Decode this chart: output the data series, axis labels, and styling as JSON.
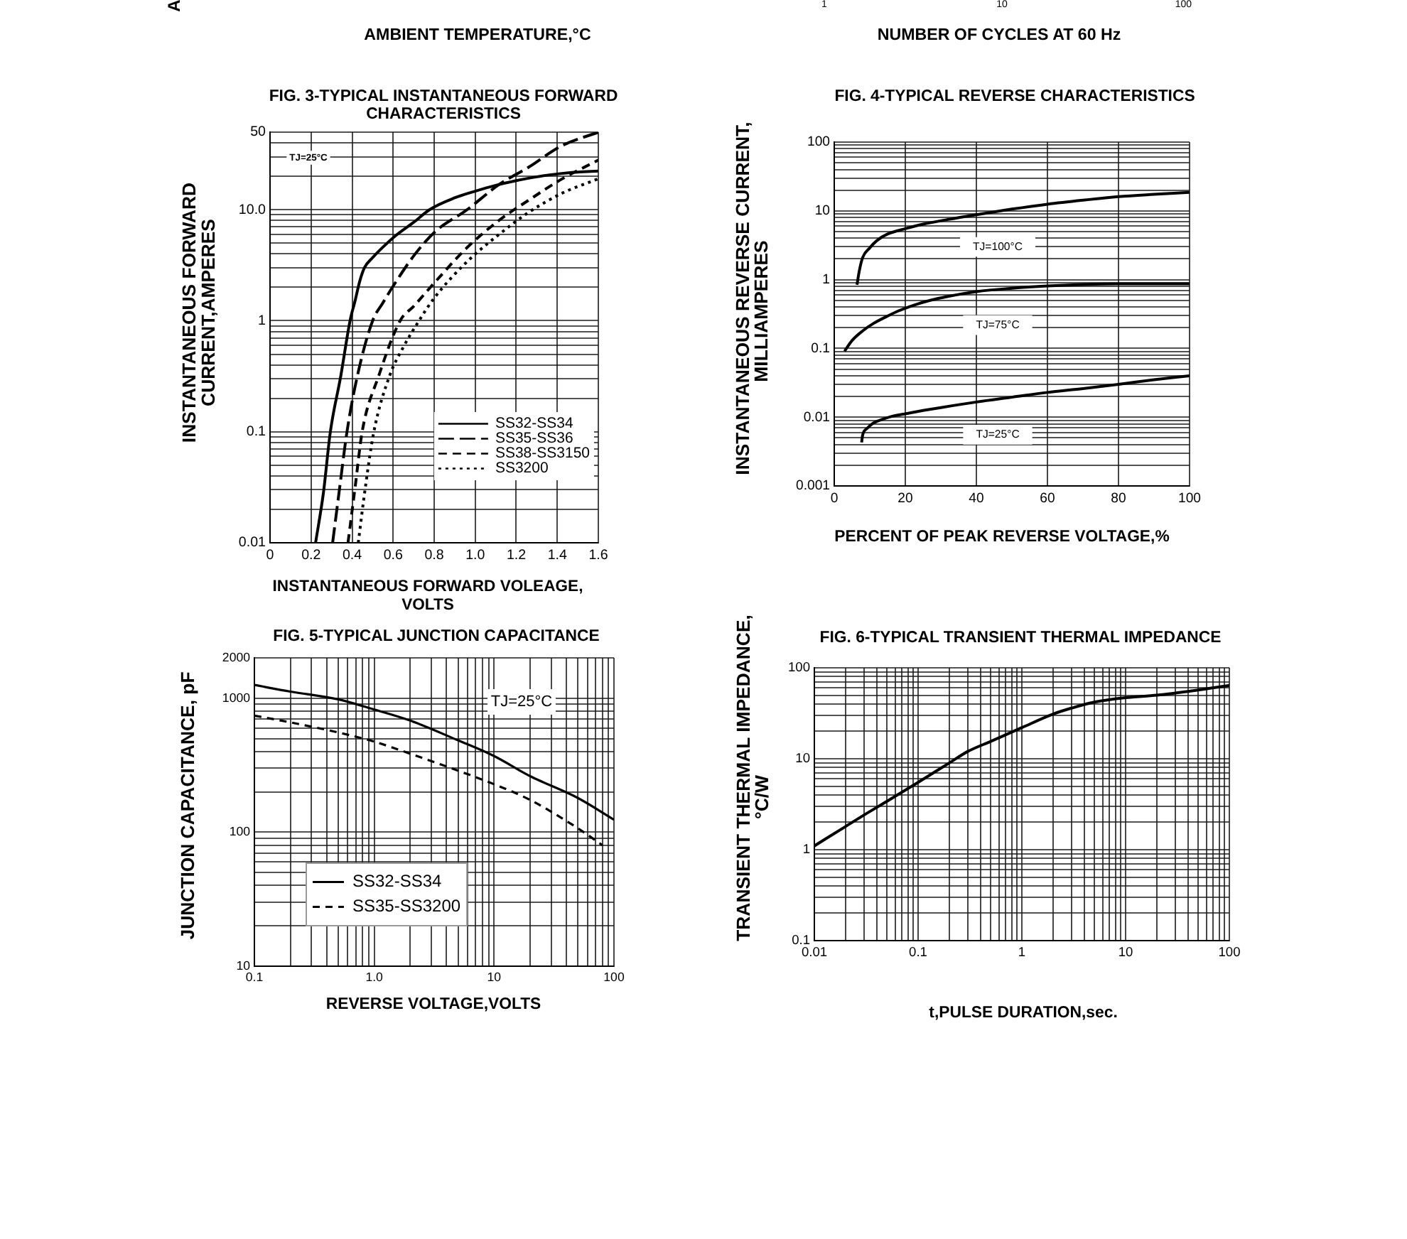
{
  "chart_data": [
    {
      "type": "other",
      "annotations": [
        "A",
        "AMBIENT TEMPERATURE,°C"
      ]
    },
    {
      "type": "other",
      "annotations": [
        "1",
        "10",
        "100",
        "NUMBER OF CYCLES AT 60 Hz"
      ]
    },
    {
      "type": "line",
      "title": "FIG. 3-TYPICAL INSTANTANEOUS FORWARD CHARACTERISTICS",
      "xlabel": "INSTANTANEOUS FORWARD VOLEAGE, VOLTS",
      "ylabel": "INSTANTANEOUS FORWARD CURRENT,AMPERES",
      "annotations": [
        "TJ=25°C"
      ],
      "log": true,
      "grid": true,
      "legend": "bottom right",
      "xlim": [
        0,
        1.6
      ],
      "xticks": [
        0,
        0.2,
        0.4,
        0.6,
        0.8,
        {
          "value": 1,
          "label": "1.0"
        },
        1.2,
        1.4,
        1.6
      ],
      "ylim": [
        0.01,
        50
      ],
      "yticks": [
        0.01,
        {
          "value": 0.02,
          "label": null
        },
        {
          "value": 0.03,
          "label": null
        },
        {
          "value": 0.04,
          "label": null
        },
        {
          "value": 0.05,
          "label": null
        },
        {
          "value": 0.06,
          "label": null
        },
        {
          "value": 0.07,
          "label": null
        },
        {
          "value": 0.08,
          "label": null
        },
        {
          "value": 0.09,
          "label": null
        },
        0.1,
        {
          "value": 0.2,
          "label": null
        },
        {
          "value": 0.3,
          "label": null
        },
        {
          "value": 0.4,
          "label": null
        },
        {
          "value": 0.5,
          "label": null
        },
        {
          "value": 0.6,
          "label": null
        },
        {
          "value": 0.7,
          "label": null
        },
        {
          "value": 0.8,
          "label": null
        },
        {
          "value": 0.9,
          "label": null
        },
        1,
        {
          "value": 2,
          "label": null
        },
        {
          "value": 3,
          "label": null
        },
        {
          "value": 4,
          "label": null
        },
        {
          "value": 5,
          "label": null
        },
        {
          "value": 6,
          "label": null
        },
        {
          "value": 7,
          "label": null
        },
        {
          "value": 8,
          "label": null
        },
        {
          "value": 9,
          "label": null
        },
        {
          "value": 10,
          "label": "10.0"
        },
        {
          "value": 20,
          "label": null
        },
        {
          "value": 30,
          "label": null
        },
        {
          "value": 40,
          "label": null
        },
        50
      ],
      "series": [
        {
          "name": "SS32-SS34",
          "color": "#000000",
          "line_style": "solid",
          "x": [
            0.222,
            0.26,
            0.294,
            0.345,
            0.39,
            0.414,
            0.437,
            0.46,
            0.5,
            0.55,
            0.61,
            0.7,
            0.777,
            0.9,
            1.0,
            1.1,
            1.2,
            1.3,
            1.4,
            1.5,
            1.6
          ],
          "values": [
            0.01,
            0.028,
            0.1,
            0.32,
            1.0,
            1.5,
            2.26,
            3.0,
            3.7,
            4.6,
            5.8,
            7.7,
            10,
            12.8,
            14.7,
            16.6,
            18.3,
            19.8,
            21,
            21.8,
            22.3
          ]
        },
        {
          "name": "SS35-SS36",
          "color": "#000000",
          "line_style": "dashed",
          "x": [
            0.305,
            0.34,
            0.375,
            0.426,
            0.5,
            0.55,
            0.6,
            0.703,
            0.807,
            0.957,
            1.119,
            1.258,
            1.42,
            1.6
          ],
          "values": [
            0.01,
            0.032,
            0.1,
            0.32,
            1.0,
            1.45,
            2.05,
            3.9,
            6.4,
            9.9,
            17,
            24,
            37.5,
            50
          ]
        },
        {
          "name": "SS38-SS3150",
          "color": "#000000",
          "line_style": "dashed",
          "x": [
            0.38,
            0.415,
            0.449,
            0.53,
            0.634,
            0.7,
            0.807,
            0.957,
            1.119,
            1.258,
            1.42,
            1.6
          ],
          "values": [
            0.01,
            0.032,
            0.1,
            0.32,
            1.0,
            1.35,
            2.26,
            4.5,
            8.1,
            12.1,
            18.8,
            28
          ]
        },
        {
          "name": "SS3200",
          "color": "#000000",
          "line_style": "dotted",
          "x": [
            0.43,
            0.465,
            0.506,
            0.583,
            0.65,
            0.726,
            0.8,
            0.957,
            1.119,
            1.258,
            1.42,
            1.6
          ],
          "values": [
            0.01,
            0.032,
            0.1,
            0.32,
            0.58,
            1.0,
            1.6,
            3.36,
            6.05,
            9.4,
            14,
            19
          ]
        }
      ]
    },
    {
      "type": "line",
      "title": "FIG. 4-TYPICAL REVERSE CHARACTERISTICS",
      "xlabel": "PERCENT OF PEAK REVERSE VOLTAGE,%",
      "ylabel": "INSTANTANEOUS REVERSE CURRENT, MILLIAMPERES",
      "log": true,
      "grid": true,
      "xlim": [
        0,
        100
      ],
      "xticks": [
        0,
        20,
        40,
        60,
        80,
        100
      ],
      "ylim": [
        0.001,
        100
      ],
      "yticks": [
        0.001,
        {
          "value": 0.002,
          "label": null
        },
        {
          "value": 0.003,
          "label": null
        },
        {
          "value": 0.004,
          "label": null
        },
        {
          "value": 0.005,
          "label": null
        },
        {
          "value": 0.006,
          "label": null
        },
        {
          "value": 0.007,
          "label": null
        },
        {
          "value": 0.008,
          "label": null
        },
        {
          "value": 0.009,
          "label": null
        },
        0.01,
        {
          "value": 0.02,
          "label": null
        },
        {
          "value": 0.03,
          "label": null
        },
        {
          "value": 0.04,
          "label": null
        },
        {
          "value": 0.05,
          "label": null
        },
        {
          "value": 0.06,
          "label": null
        },
        {
          "value": 0.07,
          "label": null
        },
        {
          "value": 0.08,
          "label": null
        },
        {
          "value": 0.09,
          "label": null
        },
        0.1,
        {
          "value": 0.2,
          "label": null
        },
        {
          "value": 0.3,
          "label": null
        },
        {
          "value": 0.4,
          "label": null
        },
        {
          "value": 0.5,
          "label": null
        },
        {
          "value": 0.6,
          "label": null
        },
        {
          "value": 0.7,
          "label": null
        },
        {
          "value": 0.8,
          "label": null
        },
        {
          "value": 0.9,
          "label": null
        },
        1,
        {
          "value": 2,
          "label": null
        },
        {
          "value": 3,
          "label": null
        },
        {
          "value": 4,
          "label": null
        },
        {
          "value": 5,
          "label": null
        },
        {
          "value": 6,
          "label": null
        },
        {
          "value": 7,
          "label": null
        },
        {
          "value": 8,
          "label": null
        },
        {
          "value": 9,
          "label": null
        },
        10,
        {
          "value": 20,
          "label": null
        },
        {
          "value": 30,
          "label": null
        },
        {
          "value": 40,
          "label": null
        },
        {
          "value": 50,
          "label": null
        },
        {
          "value": 60,
          "label": null
        },
        {
          "value": 70,
          "label": null
        },
        {
          "value": 80,
          "label": null
        },
        {
          "value": 90,
          "label": null
        },
        100
      ],
      "series": [
        {
          "name": "TJ=100°C",
          "color": "#000000",
          "x": [
            6.4,
            7,
            8,
            10,
            12,
            15,
            20,
            25,
            32,
            40,
            50,
            60,
            70,
            80,
            90,
            100
          ],
          "values": [
            0.84,
            1.3,
            2.1,
            2.9,
            3.7,
            4.6,
            5.5,
            6.4,
            7.5,
            8.8,
            10.6,
            12.5,
            14.3,
            16.1,
            17.4,
            18.6
          ]
        },
        {
          "name": "TJ=75°C",
          "color": "#000000",
          "x": [
            2.9,
            5,
            8,
            11,
            14.7,
            18,
            22.7,
            27,
            32,
            40,
            50,
            60,
            70,
            80,
            90,
            100
          ],
          "values": [
            0.091,
            0.13,
            0.18,
            0.23,
            0.29,
            0.35,
            0.43,
            0.5,
            0.57,
            0.67,
            0.75,
            0.81,
            0.85,
            0.87,
            0.87,
            0.87
          ]
        },
        {
          "name": "TJ=25°C",
          "color": "#000000",
          "x": [
            7.7,
            8,
            9.3,
            11,
            13.3,
            16,
            20,
            25,
            30,
            40,
            50,
            60,
            70,
            80,
            90,
            100
          ],
          "values": [
            0.0043,
            0.0055,
            0.0069,
            0.0082,
            0.0092,
            0.0102,
            0.0112,
            0.0125,
            0.0138,
            0.0166,
            0.0195,
            0.0229,
            0.026,
            0.03,
            0.035,
            0.04
          ]
        }
      ]
    },
    {
      "type": "line",
      "title": "FIG. 5-TYPICAL JUNCTION CAPACITANCE",
      "xlabel": "REVERSE VOLTAGE,VOLTS",
      "ylabel": "JUNCTION CAPACITANCE, pF",
      "annotations": [
        "TJ=25°C"
      ],
      "log": "xy",
      "grid": true,
      "legend": "bottom left",
      "xlim": [
        0.1,
        100
      ],
      "xticks": [
        0.1,
        {
          "value": 0.2,
          "label": null
        },
        {
          "value": 0.3,
          "label": null
        },
        {
          "value": 0.4,
          "label": null
        },
        {
          "value": 0.5,
          "label": null
        },
        {
          "value": 0.6,
          "label": null
        },
        {
          "value": 0.7,
          "label": null
        },
        {
          "value": 0.8,
          "label": null
        },
        {
          "value": 0.9,
          "label": null
        },
        {
          "value": 1,
          "label": "1.0"
        },
        {
          "value": 2,
          "label": null
        },
        {
          "value": 3,
          "label": null
        },
        {
          "value": 4,
          "label": null
        },
        {
          "value": 5,
          "label": null
        },
        {
          "value": 6,
          "label": null
        },
        {
          "value": 7,
          "label": null
        },
        {
          "value": 8,
          "label": null
        },
        {
          "value": 9,
          "label": null
        },
        10,
        {
          "value": 20,
          "label": null
        },
        {
          "value": 30,
          "label": null
        },
        {
          "value": 40,
          "label": null
        },
        {
          "value": 50,
          "label": null
        },
        {
          "value": 60,
          "label": null
        },
        {
          "value": 70,
          "label": null
        },
        {
          "value": 80,
          "label": null
        },
        {
          "value": 90,
          "label": null
        },
        100
      ],
      "ylim": [
        10,
        2000
      ],
      "yticks": [
        10,
        {
          "value": 20,
          "label": null
        },
        {
          "value": 30,
          "label": null
        },
        {
          "value": 40,
          "label": null
        },
        {
          "value": 50,
          "label": null
        },
        {
          "value": 60,
          "label": null
        },
        {
          "value": 70,
          "label": null
        },
        {
          "value": 80,
          "label": null
        },
        {
          "value": 90,
          "label": null
        },
        100,
        {
          "value": 200,
          "label": null
        },
        {
          "value": 300,
          "label": null
        },
        {
          "value": 400,
          "label": null
        },
        {
          "value": 500,
          "label": null
        },
        {
          "value": 600,
          "label": null
        },
        {
          "value": 700,
          "label": null
        },
        {
          "value": 800,
          "label": null
        },
        {
          "value": 900,
          "label": null
        },
        1000,
        2000
      ],
      "series": [
        {
          "name": "SS32-SS34",
          "color": "#000000",
          "line_style": "solid",
          "x": [
            0.1,
            0.2,
            0.5,
            1,
            2,
            5,
            10,
            20,
            50,
            100
          ],
          "values": [
            1255,
            1120,
            980,
            823,
            680,
            485,
            370,
            262,
            180,
            124
          ]
        },
        {
          "name": "SS35-SS3200",
          "color": "#000000",
          "line_style": "dashed",
          "x": [
            0.1,
            0.2,
            0.5,
            1,
            2,
            5,
            10,
            20,
            50,
            80
          ],
          "values": [
            741,
            660,
            555,
            474,
            385,
            288,
            228,
            174,
            107,
            80
          ]
        }
      ]
    },
    {
      "type": "line",
      "title": "FIG. 6-TYPICAL TRANSIENT THERMAL IMPEDANCE",
      "xlabel": "t,PULSE DURATION,sec.",
      "ylabel": "TRANSIENT THERMAL IMPEDANCE, °C/W",
      "log": "xy",
      "grid": true,
      "xlim": [
        0.01,
        100
      ],
      "xticks": [
        0.01,
        {
          "value": 0.02,
          "label": null
        },
        {
          "value": 0.03,
          "label": null
        },
        {
          "value": 0.04,
          "label": null
        },
        {
          "value": 0.05,
          "label": null
        },
        {
          "value": 0.06,
          "label": null
        },
        {
          "value": 0.07,
          "label": null
        },
        {
          "value": 0.08,
          "label": null
        },
        {
          "value": 0.09,
          "label": null
        },
        0.1,
        {
          "value": 0.2,
          "label": null
        },
        {
          "value": 0.3,
          "label": null
        },
        {
          "value": 0.4,
          "label": null
        },
        {
          "value": 0.5,
          "label": null
        },
        {
          "value": 0.6,
          "label": null
        },
        {
          "value": 0.7,
          "label": null
        },
        {
          "value": 0.8,
          "label": null
        },
        {
          "value": 0.9,
          "label": null
        },
        1,
        {
          "value": 2,
          "label": null
        },
        {
          "value": 3,
          "label": null
        },
        {
          "value": 4,
          "label": null
        },
        {
          "value": 5,
          "label": null
        },
        {
          "value": 6,
          "label": null
        },
        {
          "value": 7,
          "label": null
        },
        {
          "value": 8,
          "label": null
        },
        {
          "value": 9,
          "label": null
        },
        10,
        {
          "value": 20,
          "label": null
        },
        {
          "value": 30,
          "label": null
        },
        {
          "value": 40,
          "label": null
        },
        {
          "value": 50,
          "label": null
        },
        {
          "value": 60,
          "label": null
        },
        {
          "value": 70,
          "label": null
        },
        {
          "value": 80,
          "label": null
        },
        {
          "value": 90,
          "label": null
        },
        100
      ],
      "ylim": [
        0.1,
        100
      ],
      "yticks": [
        0.1,
        {
          "value": 0.2,
          "label": null
        },
        {
          "value": 0.3,
          "label": null
        },
        {
          "value": 0.4,
          "label": null
        },
        {
          "value": 0.5,
          "label": null
        },
        {
          "value": 0.6,
          "label": null
        },
        {
          "value": 0.7,
          "label": null
        },
        {
          "value": 0.8,
          "label": null
        },
        {
          "value": 0.9,
          "label": null
        },
        1,
        {
          "value": 2,
          "label": null
        },
        {
          "value": 3,
          "label": null
        },
        {
          "value": 4,
          "label": null
        },
        {
          "value": 5,
          "label": null
        },
        {
          "value": 6,
          "label": null
        },
        {
          "value": 7,
          "label": null
        },
        {
          "value": 8,
          "label": null
        },
        {
          "value": 9,
          "label": null
        },
        10,
        {
          "value": 20,
          "label": null
        },
        {
          "value": 30,
          "label": null
        },
        {
          "value": 40,
          "label": null
        },
        {
          "value": 50,
          "label": null
        },
        {
          "value": 60,
          "label": null
        },
        {
          "value": 70,
          "label": null
        },
        {
          "value": 80,
          "label": null
        },
        {
          "value": 90,
          "label": null
        },
        100
      ],
      "series": [
        {
          "color": "#000000",
          "x": [
            0.01,
            0.02,
            0.03,
            0.05,
            0.1,
            0.2,
            0.3,
            0.5,
            1,
            2,
            3,
            5,
            10,
            20,
            50,
            100
          ],
          "values": [
            1.1,
            1.8,
            2.4,
            3.4,
            5.5,
            9.0,
            12,
            15.5,
            22,
            31,
            36,
            42,
            47,
            50,
            57,
            64
          ]
        }
      ]
    }
  ]
}
